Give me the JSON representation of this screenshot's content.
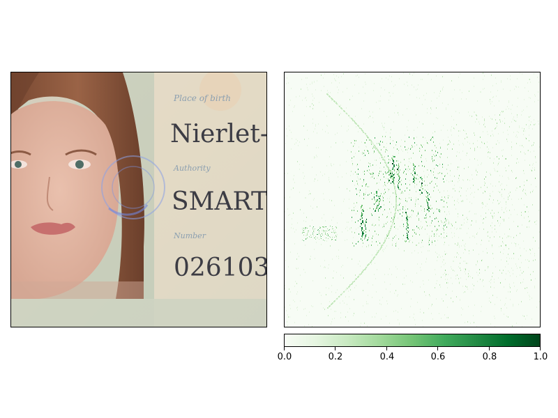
{
  "chart_data": [
    {
      "type": "image",
      "description_visible_text": {
        "place_of_birth_label": "Place of birth",
        "place_of_birth_value": "Nierlet-",
        "authority_label": "Authority",
        "authority_value": "SMART",
        "number_label": "Number",
        "number_value": "026103"
      }
    },
    {
      "type": "heatmap",
      "colormap": "Greens",
      "colorbar": {
        "min": 0.0,
        "max": 1.0,
        "ticks": [
          "0.0",
          "0.2",
          "0.4",
          "0.6",
          "0.8",
          "1.0"
        ]
      }
    }
  ]
}
